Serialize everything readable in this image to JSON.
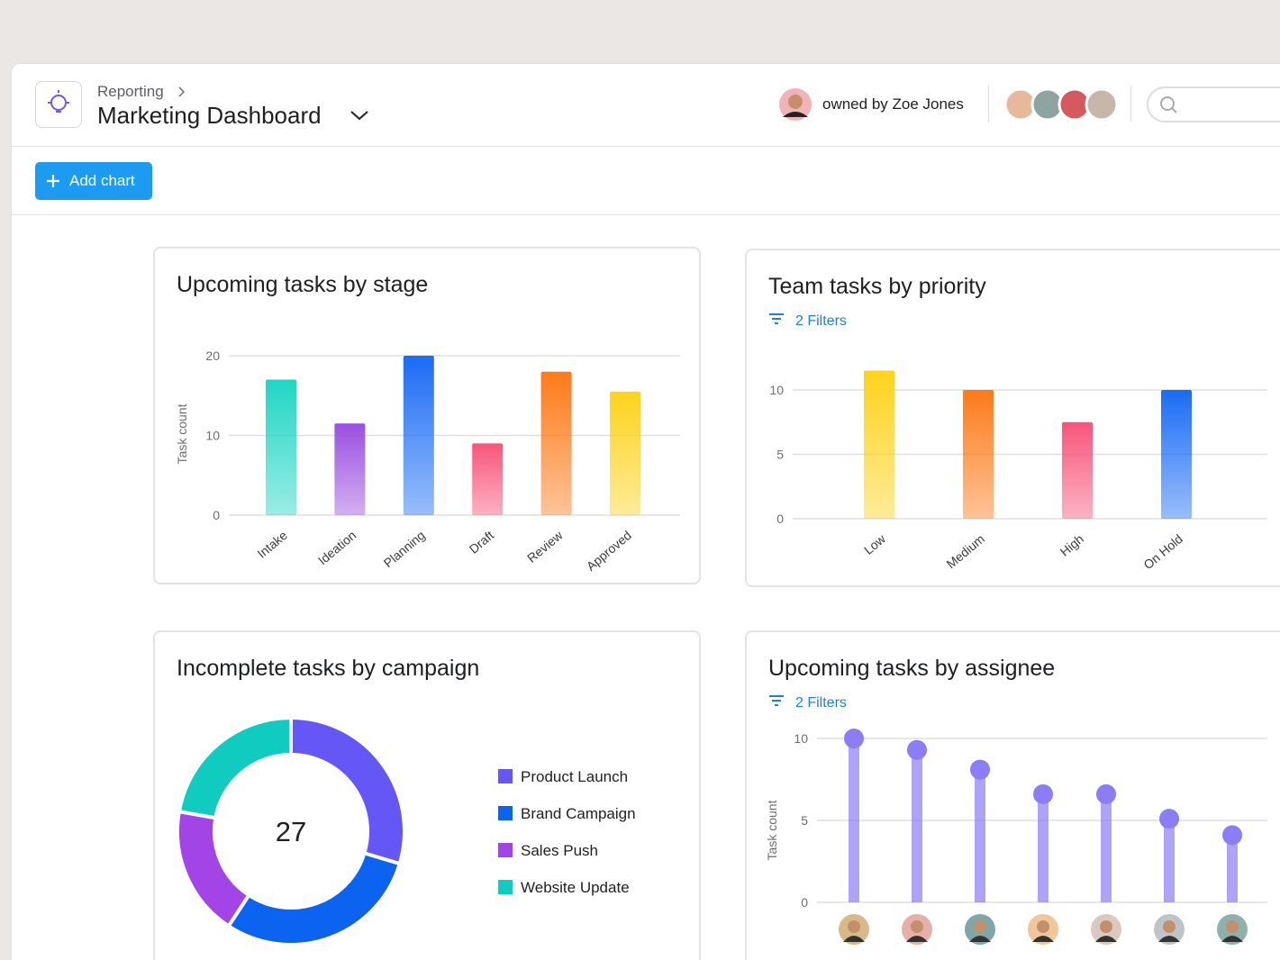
{
  "header": {
    "breadcrumb": "Reporting",
    "title": "Marketing Dashboard",
    "owner": "owned by Zoe Jones"
  },
  "toolbar": {
    "add_chart": "Add chart"
  },
  "chart_data": [
    {
      "type": "bar",
      "title": "Upcoming tasks by stage",
      "y_label": "Task count",
      "categories": [
        "Intake",
        "Ideation",
        "Planning",
        "Draft",
        "Review",
        "Approved"
      ],
      "values": [
        17,
        11.5,
        20,
        9,
        18,
        15.5
      ],
      "colors": [
        "#1fd6c4",
        "#9b4fe0",
        "#1a6cf5",
        "#f7557a",
        "#fd7a18",
        "#fdd31b"
      ],
      "ylim": [
        0,
        20
      ],
      "yticks": [
        0,
        10,
        20
      ],
      "grid": true
    },
    {
      "type": "bar",
      "title": "Team tasks by priority",
      "filter": "2 Filters",
      "categories": [
        "Low",
        "Medium",
        "High",
        "On Hold"
      ],
      "values": [
        11.5,
        10,
        7.5,
        10
      ],
      "colors": [
        "#fdd31b",
        "#fd7a18",
        "#f7557a",
        "#1a6cf5"
      ],
      "ylim": [
        0,
        10
      ],
      "yticks": [
        0,
        5,
        10
      ],
      "grid": true
    },
    {
      "type": "donut",
      "title": "Incomplete tasks by campaign",
      "total": 27,
      "categories": [
        "Product Launch",
        "Brand Campaign",
        "Sales Push",
        "Website Update"
      ],
      "values": [
        8,
        8,
        5,
        6
      ],
      "colors": [
        "#6457f5",
        "#0c63f0",
        "#a244e6",
        "#10ccc0"
      ]
    },
    {
      "type": "lollipop",
      "title": "Upcoming tasks by assignee",
      "filter": "2 Filters",
      "y_label": "Task count",
      "categories": [
        null,
        null,
        null,
        null,
        null,
        null,
        null
      ],
      "values": [
        10,
        9.3,
        8.1,
        6.6,
        6.6,
        5.1,
        4.1
      ],
      "color": "#8c7cf5",
      "ylim": [
        0,
        10
      ],
      "yticks": [
        0,
        5,
        10
      ],
      "grid": true
    }
  ]
}
